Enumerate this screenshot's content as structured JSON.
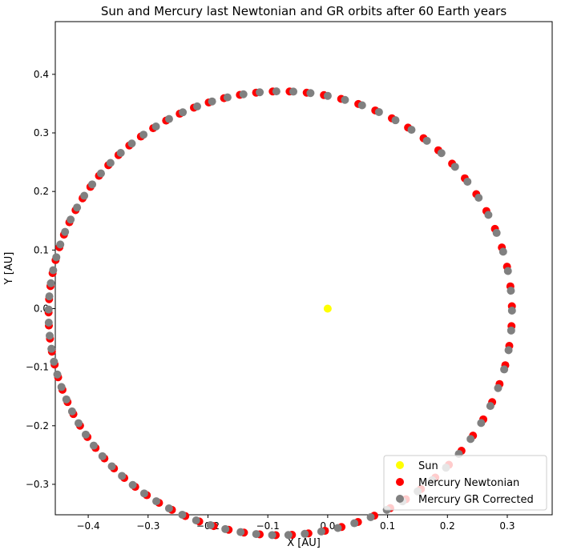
{
  "chart_data": {
    "type": "scatter",
    "title": "Sun and Mercury last Newtonian and GR orbits after 60 Earth years",
    "xlabel": "X [AU]",
    "ylabel": "Y [AU]",
    "xlim": [
      -0.455,
      0.375
    ],
    "ylim": [
      -0.352,
      0.49
    ],
    "grid": false,
    "legend_position": "lower-right",
    "x_ticks": [
      {
        "value": -0.4,
        "label": "−0.4"
      },
      {
        "value": -0.3,
        "label": "−0.3"
      },
      {
        "value": -0.2,
        "label": "−0.2"
      },
      {
        "value": -0.1,
        "label": "−0.1"
      },
      {
        "value": 0.0,
        "label": "0.0"
      },
      {
        "value": 0.1,
        "label": "0.1"
      },
      {
        "value": 0.2,
        "label": "0.2"
      },
      {
        "value": 0.3,
        "label": "0.3"
      }
    ],
    "y_ticks": [
      {
        "value": -0.3,
        "label": "−0.3"
      },
      {
        "value": -0.2,
        "label": "−0.2"
      },
      {
        "value": -0.1,
        "label": "−0.1"
      },
      {
        "value": 0.0,
        "label": "0.0"
      },
      {
        "value": 0.1,
        "label": "0.1"
      },
      {
        "value": 0.2,
        "label": "0.2"
      },
      {
        "value": 0.3,
        "label": "0.3"
      },
      {
        "value": 0.4,
        "label": "0.4"
      }
    ],
    "orbit": {
      "a": 0.3871,
      "e": 0.2056,
      "perihelion_angle_deg": 5.7,
      "points": 88
    },
    "series": [
      {
        "name": "Sun",
        "color": "#ffff00",
        "x": [
          0.0
        ],
        "y": [
          0.0
        ]
      },
      {
        "name": "Mercury Newtonian",
        "color": "#ff0000",
        "orbit_ref": "orbit",
        "phase_offset_deg": 0.9
      },
      {
        "name": "Mercury GR Corrected",
        "color": "#808080",
        "orbit_ref": "orbit",
        "phase_offset_deg": 0.0
      }
    ]
  }
}
